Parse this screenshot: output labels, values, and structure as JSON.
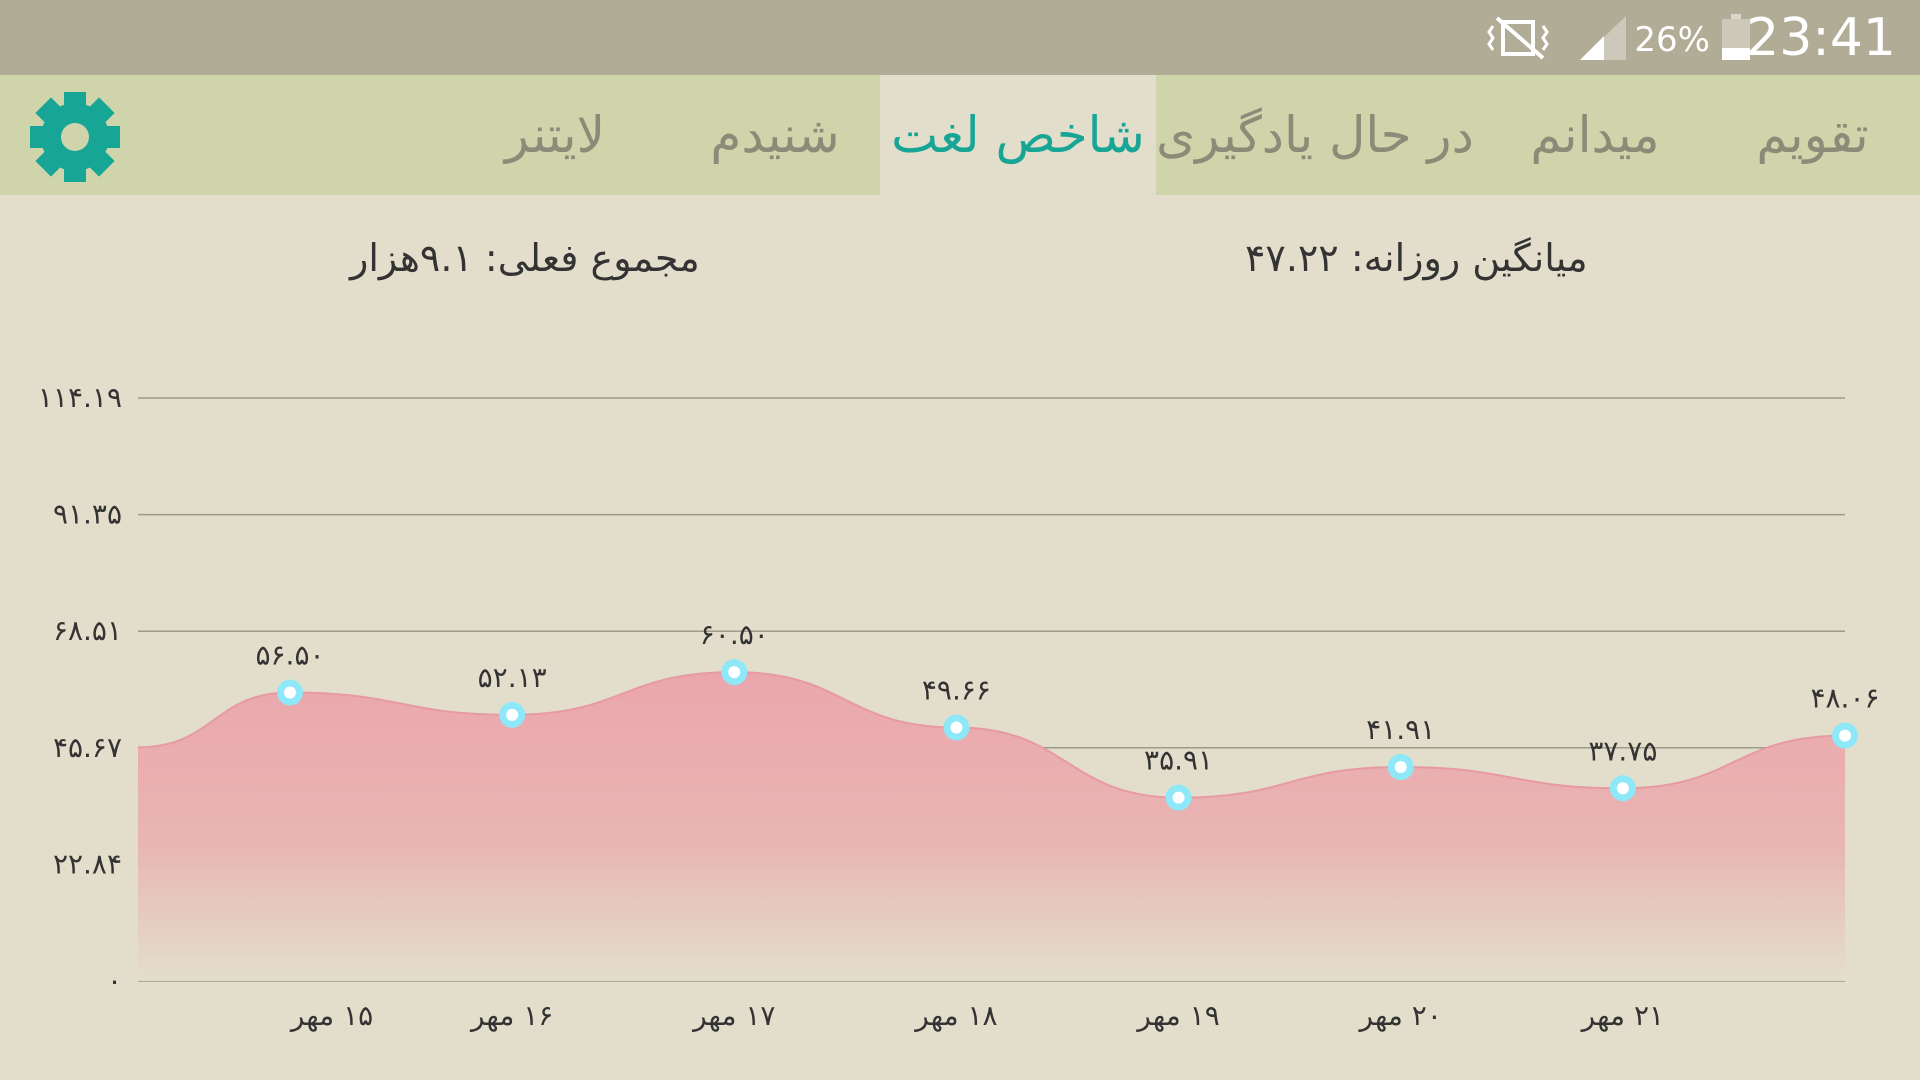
{
  "status_bar": {
    "time": "23:41",
    "battery": "26%",
    "icons": [
      "mute-vibrate-icon",
      "signal-icon",
      "battery-icon"
    ]
  },
  "tabs": [
    {
      "label": "تقویم",
      "active": false
    },
    {
      "label": "میدانم",
      "active": false
    },
    {
      "label": "در حال یادگیری",
      "active": false
    },
    {
      "label": "شاخص لغت",
      "active": true
    },
    {
      "label": "شنیدم",
      "active": false
    },
    {
      "label": "لایتنر",
      "active": false
    }
  ],
  "settings": {
    "icon": "gear-icon"
  },
  "summary": {
    "daily_average": "میانگین روزانه: ۴۷.۲۲",
    "current_total": "مجموع فعلی: ۹.۱هزار"
  },
  "colors": {
    "accent": "#17a596",
    "status_bar": "#b1ac95",
    "tab_bar": "#d0d4ab",
    "background": "#e3decb",
    "area_fill": "#eba6ad",
    "point": "#8ee8f8"
  },
  "chart_data": {
    "type": "area",
    "y_ticks": [
      "۰",
      "۲۲.۸۴",
      "۴۵.۶۷",
      "۶۸.۵۱",
      "۹۱.۳۵",
      "۱۱۴.۱۹"
    ],
    "x_ticks": [
      "۱۵ مهر",
      "۱۶ مهر",
      "۱۷ مهر",
      "۱۸ مهر",
      "۱۹ مهر",
      "۲۰ مهر",
      "۲۱ مهر"
    ],
    "ylim": [
      0,
      114.19
    ],
    "grid": true,
    "series": [
      {
        "values": [
          56.5,
          52.13,
          60.5,
          49.66,
          35.91,
          41.91,
          37.75,
          48.06
        ],
        "labels": [
          "۵۶.۵۰",
          "۵۲.۱۳",
          "۶۰.۵۰",
          "۴۹.۶۶",
          "۳۵.۹۱",
          "۴۱.۹۱",
          "۳۷.۷۵",
          "۴۸.۰۶"
        ]
      }
    ]
  }
}
